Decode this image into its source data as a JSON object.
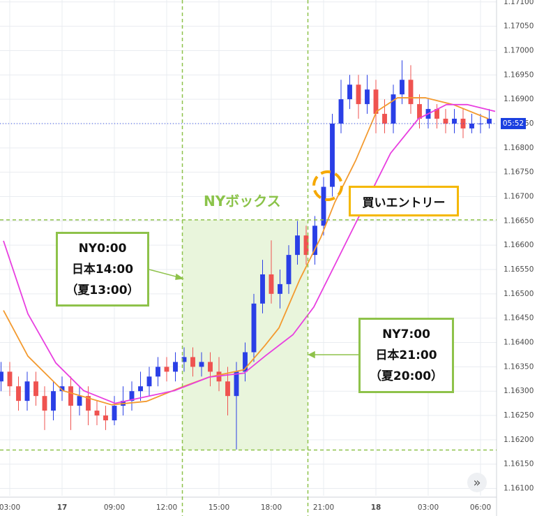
{
  "chart_data": {
    "type": "candlestick",
    "up_color": "#2a3fe6",
    "down_color": "#ef5350",
    "grid": true,
    "xlim": [
      -0.56,
      27.92
    ],
    "ylim": [
      1.16085,
      1.17104
    ],
    "xticks": [
      {
        "value": 0,
        "label": "03:00"
      },
      {
        "value": 3,
        "label": "17"
      },
      {
        "value": 6,
        "label": "09:00"
      },
      {
        "value": 9,
        "label": "12:00"
      },
      {
        "value": 12,
        "label": "15:00"
      },
      {
        "value": 15,
        "label": "18:00"
      },
      {
        "value": 18,
        "label": "21:00"
      },
      {
        "value": 21,
        "label": "18"
      },
      {
        "value": 24,
        "label": "03:00"
      },
      {
        "value": 27,
        "label": "06:00"
      }
    ],
    "yticks": [
      {
        "value": 1.161,
        "label": "1.16100"
      },
      {
        "value": 1.1615,
        "label": "1.16150"
      },
      {
        "value": 1.162,
        "label": "1.16200"
      },
      {
        "value": 1.1625,
        "label": "1.16250"
      },
      {
        "value": 1.163,
        "label": "1.16300"
      },
      {
        "value": 1.1635,
        "label": "1.16350"
      },
      {
        "value": 1.164,
        "label": "1.16400"
      },
      {
        "value": 1.1645,
        "label": "1.16450"
      },
      {
        "value": 1.165,
        "label": "1.16500"
      },
      {
        "value": 1.1655,
        "label": "1.16550"
      },
      {
        "value": 1.166,
        "label": "1.16600"
      },
      {
        "value": 1.1665,
        "label": "1.16650"
      },
      {
        "value": 1.167,
        "label": "1.16700"
      },
      {
        "value": 1.1675,
        "label": "1.16750"
      },
      {
        "value": 1.168,
        "label": "1.16800"
      },
      {
        "value": 1.1685,
        "label": "1.16850"
      },
      {
        "value": 1.169,
        "label": "1.16900"
      },
      {
        "value": 1.1695,
        "label": "1.16950"
      },
      {
        "value": 1.17,
        "label": "1.17000"
      },
      {
        "value": 1.1705,
        "label": "1.17050"
      },
      {
        "value": 1.171,
        "label": "1.17100"
      }
    ],
    "x": [
      -0.5,
      0,
      0.5,
      1,
      1.5,
      2,
      2.5,
      3,
      3.5,
      4,
      4.5,
      5,
      5.5,
      6,
      6.5,
      7,
      7.5,
      8,
      8.5,
      9,
      9.5,
      10,
      10.5,
      11,
      11.5,
      12,
      12.5,
      13,
      13.5,
      14,
      14.5,
      15,
      15.5,
      16,
      16.5,
      17,
      17.5,
      18,
      18.5,
      19,
      19.5,
      20,
      20.5,
      21,
      21.5,
      22,
      22.5,
      23,
      23.5,
      24,
      24.5,
      25,
      25.5,
      26,
      26.5,
      27,
      27.5
    ],
    "open": [
      1.1632,
      1.1634,
      1.1631,
      1.1628,
      1.1632,
      1.1629,
      1.1626,
      1.163,
      1.1631,
      1.1627,
      1.1629,
      1.1626,
      1.1625,
      1.1624,
      1.1627,
      1.1628,
      1.163,
      1.1631,
      1.1633,
      1.1635,
      1.1634,
      1.1636,
      1.1637,
      1.1635,
      1.1636,
      1.1634,
      1.1632,
      1.1629,
      1.1634,
      1.1638,
      1.1648,
      1.1654,
      1.165,
      1.1652,
      1.1658,
      1.1662,
      1.1658,
      1.1664,
      1.1672,
      1.1685,
      1.169,
      1.1693,
      1.1689,
      1.1692,
      1.1687,
      1.1685,
      1.1691,
      1.1694,
      1.1689,
      1.1686,
      1.1688,
      1.1686,
      1.1685,
      1.1686,
      1.1684,
      1.1685,
      1.1685
    ],
    "high": [
      1.1636,
      1.1636,
      1.1633,
      1.1634,
      1.1634,
      1.1631,
      1.1632,
      1.1633,
      1.1633,
      1.1631,
      1.1631,
      1.1628,
      1.1627,
      1.1629,
      1.1631,
      1.1632,
      1.1634,
      1.1635,
      1.1637,
      1.1637,
      1.1638,
      1.1639,
      1.1639,
      1.1638,
      1.1638,
      1.1637,
      1.1635,
      1.1636,
      1.164,
      1.165,
      1.1657,
      1.1661,
      1.1655,
      1.166,
      1.1665,
      1.1664,
      1.1666,
      1.1674,
      1.1687,
      1.1694,
      1.1695,
      1.1695,
      1.1695,
      1.1694,
      1.169,
      1.1693,
      1.1698,
      1.1697,
      1.1691,
      1.169,
      1.1689,
      1.1688,
      1.1688,
      1.1688,
      1.1687,
      1.1687,
      1.1688
    ],
    "low": [
      1.163,
      1.1629,
      1.1626,
      1.1626,
      1.1627,
      1.1622,
      1.1624,
      1.1628,
      1.1622,
      1.1625,
      1.1623,
      1.1623,
      1.1622,
      1.1623,
      1.1625,
      1.1626,
      1.1628,
      1.1629,
      1.1631,
      1.1632,
      1.1632,
      1.1634,
      1.1633,
      1.1633,
      1.1631,
      1.163,
      1.1625,
      1.1618,
      1.1632,
      1.1636,
      1.1646,
      1.1648,
      1.1647,
      1.165,
      1.1656,
      1.1656,
      1.1656,
      1.1662,
      1.167,
      1.1683,
      1.1688,
      1.1686,
      1.1687,
      1.1683,
      1.1683,
      1.1683,
      1.1689,
      1.1687,
      1.1684,
      1.1684,
      1.1684,
      1.1683,
      1.1683,
      1.1682,
      1.1683,
      1.1683,
      1.1684
    ],
    "close": [
      1.1634,
      1.1631,
      1.1628,
      1.1632,
      1.1629,
      1.1626,
      1.163,
      1.1631,
      1.1627,
      1.1629,
      1.1626,
      1.1625,
      1.1624,
      1.1627,
      1.1628,
      1.163,
      1.1631,
      1.1633,
      1.1635,
      1.1634,
      1.1636,
      1.1637,
      1.1635,
      1.1636,
      1.1634,
      1.1632,
      1.1629,
      1.1634,
      1.1638,
      1.1648,
      1.1654,
      1.165,
      1.1652,
      1.1658,
      1.1662,
      1.1658,
      1.1664,
      1.1672,
      1.1685,
      1.169,
      1.1693,
      1.1689,
      1.1692,
      1.1687,
      1.1685,
      1.1691,
      1.1694,
      1.1689,
      1.1686,
      1.1688,
      1.1686,
      1.1685,
      1.1686,
      1.1684,
      1.1685,
      1.1685,
      1.1686
    ],
    "lines": [
      {
        "color": "#f39a2f",
        "x": [
          -0.36,
          1.04,
          3.04,
          5.84,
          7.84,
          9.84,
          11.44,
          13.44,
          14.64,
          15.44,
          16.64,
          17.84,
          18.64,
          19.84,
          21.04,
          22.24,
          23.84,
          25.44,
          27.44
        ],
        "values": [
          1.16466,
          1.16372,
          1.16301,
          1.16272,
          1.16279,
          1.16308,
          1.16329,
          1.16344,
          1.16394,
          1.1643,
          1.1653,
          1.16616,
          1.16688,
          1.16774,
          1.16875,
          1.16903,
          1.16903,
          1.16889,
          1.1686
        ]
      },
      {
        "color": "#e83fe0",
        "x": [
          -0.36,
          1.04,
          2.64,
          4.24,
          6.04,
          9.44,
          11.44,
          13.44,
          14.64,
          16.24,
          17.44,
          18.64,
          20.24,
          21.84,
          23.44,
          25.04,
          26.24,
          27.84
        ],
        "values": [
          1.16609,
          1.16459,
          1.16358,
          1.16301,
          1.16275,
          1.16301,
          1.16329,
          1.16337,
          1.16372,
          1.16416,
          1.16473,
          1.16559,
          1.16674,
          1.16789,
          1.1686,
          1.16889,
          1.16889,
          1.16875
        ]
      }
    ],
    "box": {
      "x": [
        9.9,
        17.1
      ],
      "y": [
        1.16179,
        1.16652
      ],
      "label": "NYボックス"
    },
    "price_label": {
      "value": 1.1685,
      "label": "05:52"
    },
    "annotations": {
      "start": [
        "NY0:00",
        "日本14:00",
        "（夏13:00）"
      ],
      "end": [
        "NY7:00",
        "日本21:00",
        "（夏20:00）"
      ],
      "entry": "買いエントリー"
    },
    "scroll_button": "»"
  }
}
